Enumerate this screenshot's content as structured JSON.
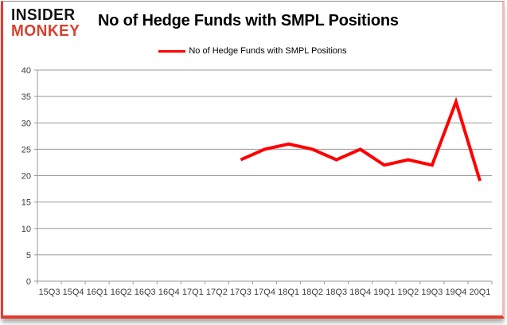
{
  "logo": {
    "line1": "INSIDER",
    "line2": "MONKEY"
  },
  "title": "No of Hedge Funds with SMPL Positions",
  "legend": {
    "label": "No of Hedge Funds with SMPL Positions",
    "color": "#ff0000"
  },
  "colors": {
    "line": "#ff0000",
    "grid": "#9a9a9a",
    "axis": "#9a9a9a",
    "tick_label": "#3d3d3d",
    "frame_red": "#e23b2e"
  },
  "chart_data": {
    "type": "line",
    "title": "No of Hedge Funds with SMPL Positions",
    "categories": [
      "15Q3",
      "15Q4",
      "16Q1",
      "16Q2",
      "16Q3",
      "16Q4",
      "17Q1",
      "17Q2",
      "17Q3",
      "17Q4",
      "18Q1",
      "18Q2",
      "18Q3",
      "18Q4",
      "19Q1",
      "19Q2",
      "19Q3",
      "19Q4",
      "20Q1"
    ],
    "series": [
      {
        "name": "No of Hedge Funds with SMPL Positions",
        "color": "#ff0000",
        "values": [
          null,
          null,
          null,
          null,
          null,
          null,
          null,
          null,
          23,
          25,
          26,
          25,
          23,
          25,
          22,
          23,
          22,
          34,
          19
        ]
      }
    ],
    "xlabel": "",
    "ylabel": "",
    "ylim": [
      0,
      40
    ],
    "yticks": [
      0,
      5,
      10,
      15,
      20,
      25,
      30,
      35,
      40
    ],
    "grid": "horizontal",
    "legend_position": "top"
  }
}
